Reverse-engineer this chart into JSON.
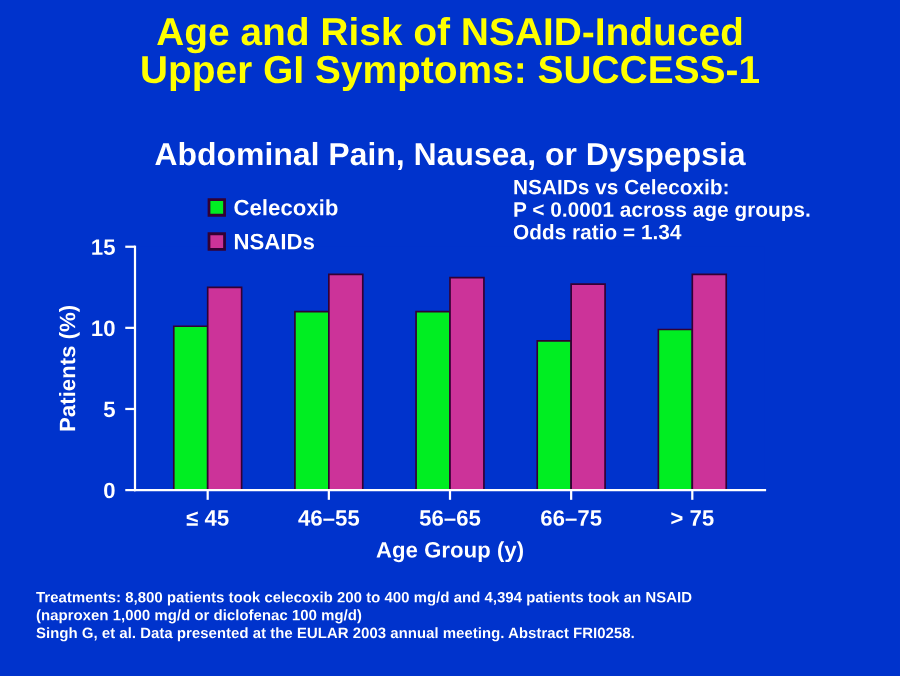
{
  "chart_data": {
    "type": "bar",
    "title": "Age and Risk of NSAID-Induced\nUpper GI Symptoms: SUCCESS-1",
    "subtitle": "Abdominal Pain, Nausea, or Dyspepsia",
    "xlabel": "Age Group (y)",
    "ylabel": "Patients (%)",
    "categories": [
      "≤ 45",
      "46–55",
      "56–65",
      "66–75",
      "> 75"
    ],
    "series": [
      {
        "name": "Celecoxib",
        "color": "#00ee22",
        "values": [
          10.1,
          11.0,
          11.0,
          9.2,
          9.9
        ]
      },
      {
        "name": "NSAIDs",
        "color": "#cc3399",
        "values": [
          12.5,
          13.3,
          13.1,
          12.7,
          13.3
        ]
      }
    ],
    "ylim": [
      0,
      15
    ],
    "yticks": [
      0,
      5,
      10,
      15
    ],
    "grid": false,
    "legend": "top left",
    "annotations": [
      "NSAIDs vs Celecoxib:\nP < 0.0001 across age groups.\nOdds ratio = 1.34",
      "Treatments: 8,800 patients took celecoxib 200 to 400 mg/d and 4,394 patients took an NSAID\n(naproxen 1,000 mg/d or diclofenac 100 mg/d)\nSingh G, et al. Data presented at the EULAR 2003 annual meeting. Abstract FRI0258."
    ]
  }
}
